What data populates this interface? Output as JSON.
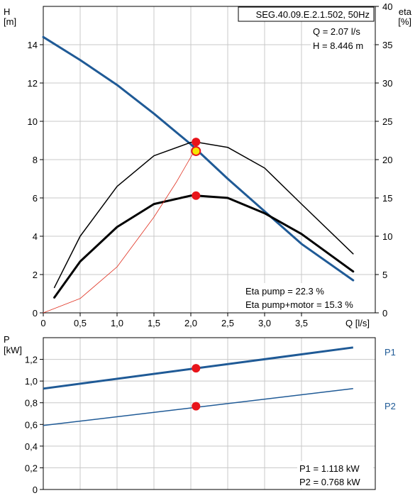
{
  "chart_data": [
    {
      "type": "line",
      "title": "SEG.40.09.E.2.1.502, 50Hz",
      "xlabel": "Q [l/s]",
      "ylabel_left": "H",
      "ylabel_left_unit": "[m]",
      "ylabel_right": "eta",
      "ylabel_right_unit": "[%]",
      "xlim": [
        0,
        4.5
      ],
      "ylim_left": [
        0,
        16
      ],
      "ylim_right": [
        0,
        40
      ],
      "x_ticks": [
        "0",
        "0,5",
        "1,0",
        "1,5",
        "2,0",
        "2,5",
        "3,0",
        "3,5"
      ],
      "y_left_ticks": [
        "0",
        "2",
        "4",
        "6",
        "8",
        "10",
        "12",
        "14"
      ],
      "y_right_ticks": [
        "0",
        "5",
        "10",
        "15",
        "20",
        "25",
        "30",
        "35",
        "40"
      ],
      "grid": true,
      "annotations": {
        "q_label": "Q = 2.07 l/s",
        "h_label": "H = 8.446 m",
        "eta_pump_label": "Eta pump = 22.3 %",
        "eta_total_label": "Eta pump+motor = 15.3 %"
      },
      "operating_point": {
        "Q": 2.07,
        "H": 8.446,
        "eta_pump": 22.3,
        "eta_total": 15.3
      },
      "series": [
        {
          "axis": "left",
          "style": "head",
          "color": "#1f5a96",
          "x": [
            0,
            0.5,
            1.0,
            1.5,
            2.0,
            2.5,
            3.0,
            3.5,
            4.2
          ],
          "y": [
            14.4,
            13.2,
            11.9,
            10.4,
            8.8,
            7.0,
            5.3,
            3.6,
            1.7
          ]
        },
        {
          "axis": "right",
          "style": "eta-pump",
          "color": "#000000",
          "x": [
            0.15,
            0.5,
            1.0,
            1.5,
            2.0,
            2.07,
            2.5,
            3.0,
            3.5,
            4.2
          ],
          "y": [
            3.3,
            10.0,
            16.5,
            20.5,
            22.25,
            22.3,
            21.6,
            18.9,
            14.2,
            7.7
          ]
        },
        {
          "axis": "right",
          "style": "eta-total",
          "color": "#000000",
          "x": [
            0.15,
            0.5,
            1.0,
            1.5,
            2.0,
            2.07,
            2.5,
            3.0,
            3.5,
            4.2
          ],
          "y": [
            2.0,
            6.7,
            11.2,
            14.2,
            15.3,
            15.3,
            15.0,
            13.0,
            10.3,
            5.4
          ]
        },
        {
          "axis": "left",
          "style": "npsh",
          "color": "#e03020",
          "x": [
            0,
            0.5,
            1.0,
            1.5,
            1.8,
            2.07
          ],
          "y": [
            0,
            0.75,
            2.4,
            5.0,
            6.8,
            8.6
          ]
        }
      ]
    },
    {
      "type": "line",
      "xlabel": "",
      "ylabel": "P",
      "ylabel_unit": "[kW]",
      "xlim": [
        0,
        4.5
      ],
      "ylim": [
        0,
        1.4
      ],
      "y_ticks": [
        "0",
        "0,2",
        "0,4",
        "0,6",
        "0,8",
        "1,0",
        "1,2"
      ],
      "grid": true,
      "annotations": {
        "p1_label": "P1 = 1.118 kW",
        "p2_label": "P2 = 0.768 kW"
      },
      "operating_point": {
        "Q": 2.07,
        "P1": 1.118,
        "P2": 0.768
      },
      "series": [
        {
          "name": "P1",
          "color": "#1f5a96",
          "x": [
            0,
            4.2
          ],
          "y": [
            0.93,
            1.31
          ]
        },
        {
          "name": "P2",
          "color": "#1f5a96",
          "x": [
            0,
            4.2
          ],
          "y": [
            0.59,
            0.93
          ]
        }
      ]
    }
  ]
}
